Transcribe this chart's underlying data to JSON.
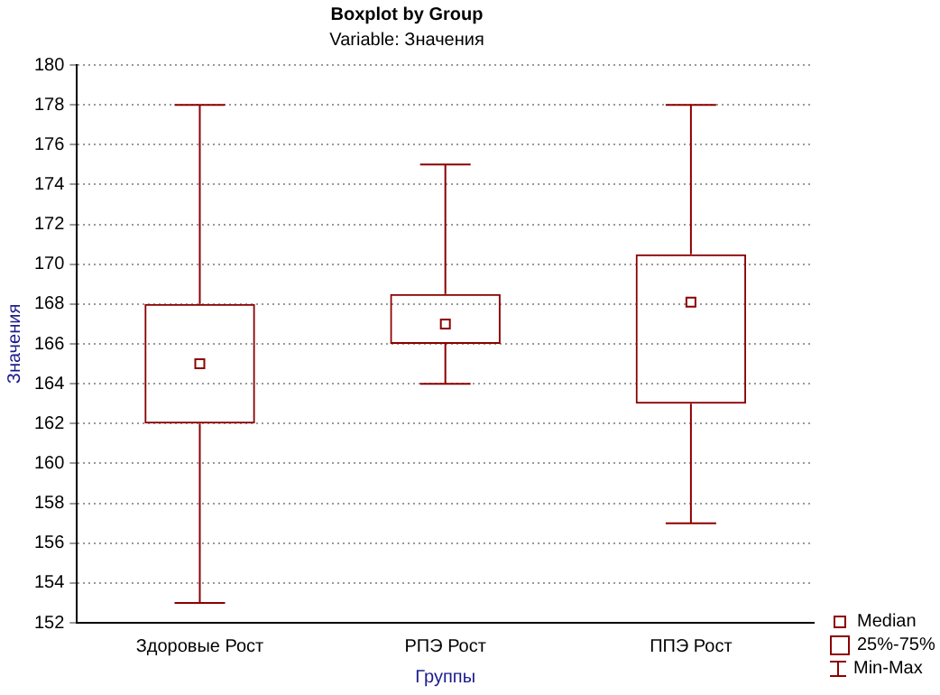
{
  "chart_data": {
    "type": "box",
    "title": "Boxplot by Group",
    "subtitle": "Variable: Значения",
    "xlabel": "Группы",
    "ylabel": "Значения",
    "categories": [
      "Здоровые Рост",
      "РПЭ Рост",
      "ППЭ Рост"
    ],
    "boxes": [
      {
        "low": 153,
        "q1": 162,
        "median": 165,
        "q3": 168,
        "high": 178
      },
      {
        "low": 164,
        "q1": 166,
        "median": 167,
        "q3": 168.5,
        "high": 175
      },
      {
        "low": 157,
        "q1": 163,
        "median": 168.1,
        "q3": 170.5,
        "high": 178
      }
    ],
    "color": "#8b0000",
    "ylim": [
      152,
      180
    ],
    "yticks": [
      152,
      154,
      156,
      158,
      160,
      162,
      164,
      166,
      168,
      170,
      172,
      174,
      176,
      178,
      180
    ],
    "grid": "y",
    "annotations": [
      "Median",
      "25%-75%",
      "Min-Max"
    ]
  }
}
